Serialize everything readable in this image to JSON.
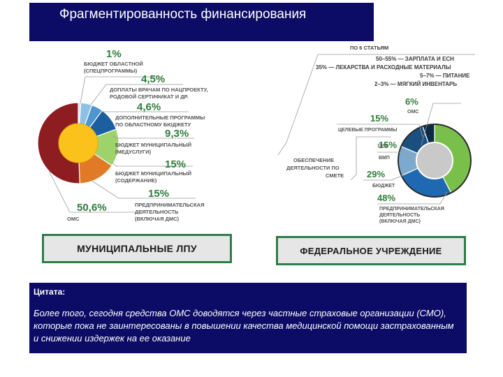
{
  "title": "Фрагментированность финансирования",
  "colors": {
    "navy": "#0c0c66",
    "label_gray": "#555555",
    "percent_green": "#2f7d3b",
    "box_border": "#2f7d47",
    "box_fill": "#e6e6e6"
  },
  "municipal": {
    "slices": [
      {
        "percent": "1%",
        "value": 1,
        "lines": [
          "БЮДЖЕТ ОБЛАСТНОЙ",
          "(СПЕЦПРОГРАММЫ)"
        ],
        "color": "#cce4f4"
      },
      {
        "percent": "4,5%",
        "value": 4.5,
        "lines": [
          "ДОПЛАТЫ ВРАЧАМ ПО НАЦПРОЕКТУ,",
          "РОДОВОЙ СЕРТИФИКАТ И ДР."
        ],
        "color": "#8ec0e6"
      },
      {
        "percent": "4,6%",
        "value": 4.6,
        "lines": [
          "ДОПОЛНИТЕЛЬНЫЕ ПРОГРАММЫ",
          "ПО ОБЛАСТНОМУ БЮДЖЕТУ"
        ],
        "color": "#4f95cf"
      },
      {
        "percent": "9,3%",
        "value": 9.3,
        "lines": [
          "БЮДЖЕТ МУНИЦИПАЛЬНЫЙ",
          "(МЕДУСЛУГИ)"
        ],
        "color": "#1c5f9e"
      },
      {
        "percent": "15%",
        "value": 15,
        "lines": [
          "БЮДЖЕТ МУНИЦИПАЛЬНЫЙ",
          "(СОДЕРЖАНИЕ)"
        ],
        "color": "#9ed36c"
      },
      {
        "percent": "15%",
        "value": 15,
        "lines": [
          "ПРЕДПРИНИМАТЕЛЬСКАЯ",
          "ДЕЯТЕЛЬНОСТЬ",
          "(ВКЛЮЧАЯ ДМС)"
        ],
        "color": "#e07a26"
      },
      {
        "percent": "50,6%",
        "value": 50.6,
        "lines": [
          "ОМС"
        ],
        "color": "#8e1d22"
      }
    ],
    "box_label": "МУНИЦИПАЛЬНЫЕ ЛПУ"
  },
  "federal": {
    "slices": [
      {
        "percent": "6%",
        "value": 6,
        "lines": [
          "ОМС"
        ],
        "color": "#0a2a46"
      },
      {
        "percent": "15%",
        "value": 15,
        "lines": [
          "ЦЕЛЕВЫЕ ПРОГРАММЫ"
        ],
        "color": "#1a4f80"
      },
      {
        "percent": "15%",
        "value": 15,
        "lines": [
          "ВМП"
        ],
        "color": "#7ea9cf"
      },
      {
        "percent": "29%",
        "value": 29,
        "lines": [
          "БЮДЖЕТ"
        ],
        "color": "#1f69b3"
      },
      {
        "percent": "48%",
        "value": 48,
        "lines": [
          "ПРЕДПРИНИМАТЕЛЬСКАЯ",
          "ДЕЯТЕЛЬНОСТЬ",
          "(ВКЛЮЧАЯ ДМС)"
        ],
        "color": "#79c04a"
      }
    ],
    "support_lines": [
      "ОБЕСПЕЧЕНИЕ",
      "ДЕЯТЕЛЬНОСТИ ПО",
      "СМЕТЕ"
    ],
    "articles": {
      "heading": "ПО 6 СТАТЬЯМ",
      "lines": [
        "50–55% — ЗАРПЛАТА И ЕСН",
        "35% — ЛЕКАРСТВА И РАСХОДНЫЕ МАТЕРИАЛЫ",
        "5–7% — ПИТАНИЕ",
        "2–3% — МЯГКИЙ ИНВЕНТАРЬ"
      ]
    },
    "box_label": "ФЕДЕРАЛЬНОЕ УЧРЕЖДЕНИЕ"
  },
  "quote": {
    "label": "Цитата:",
    "text": "Более того, сегодня средства ОМС доводятся через частные страховые организации (СМО), которые пока не заинтересованы в повышении качества медицинской помощи застрахованным и снижении издержек на ее оказание"
  }
}
